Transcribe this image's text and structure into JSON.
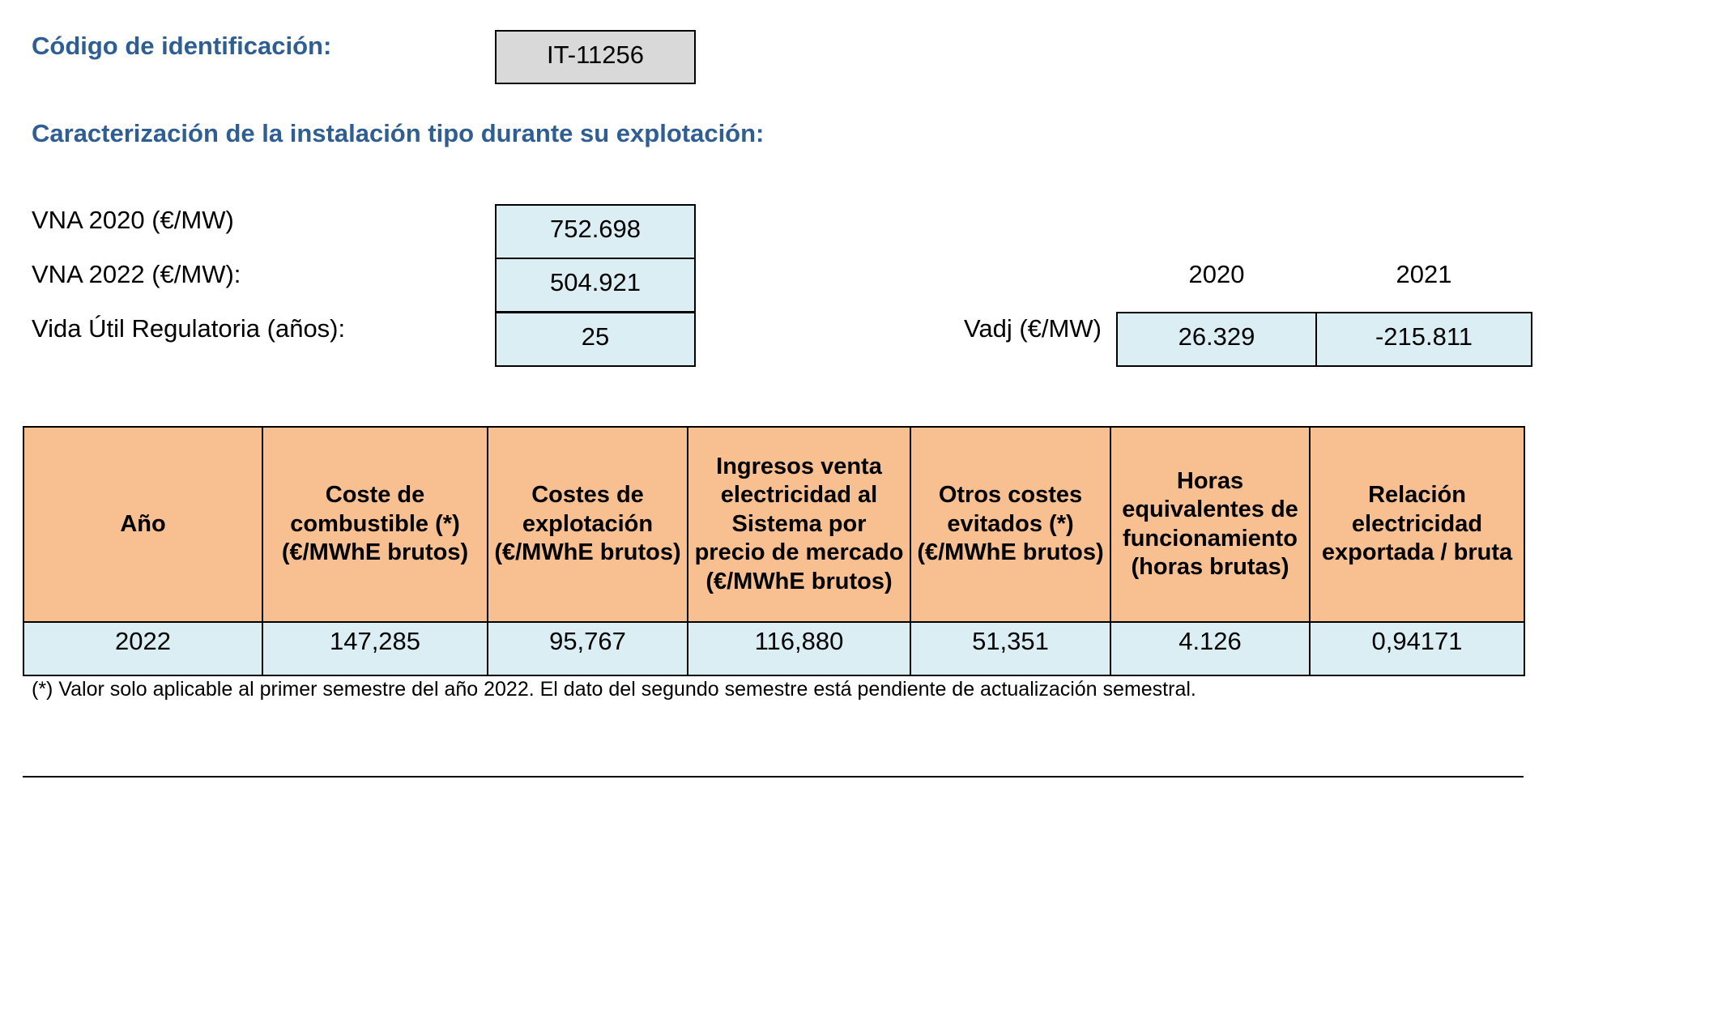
{
  "header": {
    "id_label": "Código de identificación:",
    "id_value": "IT-11256",
    "section_title": "Caracterización de la instalación tipo durante su explotación:",
    "heading_color": "#2f5e93"
  },
  "parameters": {
    "vna_2020_label": "VNA 2020 (€/MW)",
    "vna_2020_value": "752.698",
    "vna_2022_label": "VNA 2022 (€/MW):",
    "vna_2022_value": "504.921",
    "vida_util_label": "Vida Útil Regulatoria (años):",
    "vida_util_value": "25"
  },
  "vadj": {
    "label": "Vadj (€/MW)",
    "years": [
      "2020",
      "2021"
    ],
    "values": [
      "26.329",
      "-215.811"
    ]
  },
  "table": {
    "headers": [
      "Año",
      "Coste de combustible (*) (€/MWhE brutos)",
      "Costes de explotación (€/MWhE brutos)",
      "Ingresos venta electricidad al Sistema por precio de mercado (€/MWhE brutos)",
      "Otros costes evitados (*) (€/MWhE brutos)",
      "Horas equivalentes de funcionamiento (horas brutas)",
      "Relación electricidad exportada / bruta"
    ],
    "rows": [
      [
        "2022",
        "147,285",
        "95,767",
        "116,880",
        "51,351",
        "4.126",
        "0,94171"
      ]
    ]
  },
  "footnote": "(*) Valor solo aplicable al primer semestre del año 2022. El dato del segundo semestre está pendiente de actualización semestral.",
  "colors": {
    "header_fill": "#f8bf90",
    "value_fill": "#daeef3",
    "id_fill": "#d9d9d9"
  }
}
